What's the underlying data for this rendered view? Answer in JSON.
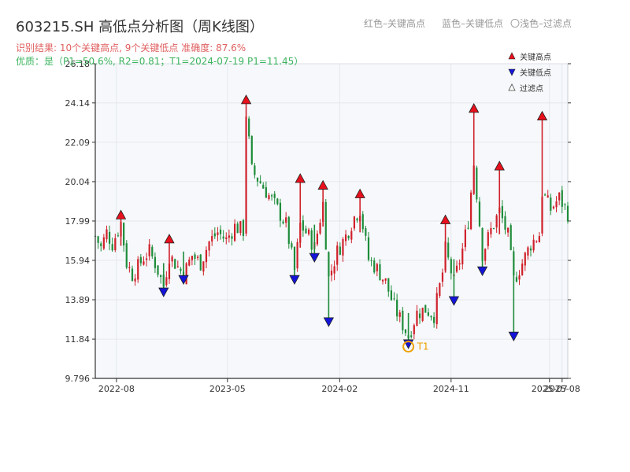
{
  "title": "603215.SH 高低点分析图（周K线图）",
  "subtitle_result": "识别结果: 10个关键高点, 9个关键低点  准确度: 87.6%",
  "subtitle_quality": "优质：是（P1=50.6%, R2=0.81；T1=2024-07-19 P1=11.45）",
  "top_legend": {
    "red": "红色–关键高点",
    "blue": "蓝色–关键低点",
    "light": "〇浅色–过滤点"
  },
  "chart_data": {
    "type": "candlestick",
    "colors": {
      "up": "#d0202a",
      "down": "#1e8c3a",
      "high_marker": "#e8101c",
      "low_marker": "#1414d8",
      "t1": "#f0a000"
    },
    "x_range": [
      "2022-06-10",
      "2025-08-15"
    ],
    "ylim": [
      9.796,
      26.18
    ],
    "y_ticks": [
      "9.796",
      "11.84",
      "13.89",
      "15.94",
      "17.99",
      "20.04",
      "22.09",
      "24.14",
      "26.18"
    ],
    "y_tick_values": [
      9.796,
      11.84,
      13.89,
      15.94,
      17.99,
      20.04,
      22.09,
      24.14,
      26.18
    ],
    "x_ticks": [
      {
        "date": "2022-08-01",
        "label": "2022-08"
      },
      {
        "date": "2023-05-01",
        "label": "2023-05"
      },
      {
        "date": "2024-02-01",
        "label": "2024-02"
      },
      {
        "date": "2024-11-01",
        "label": "2024-11"
      },
      {
        "date": "2025-07-01",
        "label": "2025-07"
      },
      {
        "date": "2025-08-01",
        "label": "2025-08"
      }
    ],
    "legend": [
      {
        "label": "关键高点",
        "marker": "triangle-up-red"
      },
      {
        "label": "关键低点",
        "marker": "triangle-down-blue"
      },
      {
        "label": "过滤点",
        "marker": "triangle-up-light"
      }
    ],
    "key_highs": [
      {
        "date": "2022-08-12",
        "value": 18.3
      },
      {
        "date": "2022-12-09",
        "value": 17.05
      },
      {
        "date": "2023-06-16",
        "value": 24.3
      },
      {
        "date": "2023-10-27",
        "value": 20.2
      },
      {
        "date": "2023-12-22",
        "value": 19.85
      },
      {
        "date": "2024-03-22",
        "value": 19.4
      },
      {
        "date": "2024-10-18",
        "value": 18.05
      },
      {
        "date": "2024-12-27",
        "value": 23.85
      },
      {
        "date": "2025-02-28",
        "value": 20.85
      },
      {
        "date": "2025-06-13",
        "value": 23.45
      }
    ],
    "key_lows": [
      {
        "date": "2022-11-25",
        "value": 14.3
      },
      {
        "date": "2023-01-13",
        "value": 14.95
      },
      {
        "date": "2023-10-13",
        "value": 14.95
      },
      {
        "date": "2023-12-01",
        "value": 16.1
      },
      {
        "date": "2024-01-05",
        "value": 12.75
      },
      {
        "date": "2024-07-19",
        "value": 11.6
      },
      {
        "date": "2024-11-08",
        "value": 13.85
      },
      {
        "date": "2025-01-17",
        "value": 15.4
      },
      {
        "date": "2025-04-04",
        "value": 12.0
      }
    ],
    "filtered_points": [
      {
        "date": "2024-07-19",
        "value": 11.45,
        "label": "T1"
      }
    ],
    "weekly_close": [
      {
        "date": "2022-06-10",
        "close": 17.2
      },
      {
        "date": "2022-06-24",
        "close": 16.6
      },
      {
        "date": "2022-07-08",
        "close": 17.4
      },
      {
        "date": "2022-07-22",
        "close": 16.8
      },
      {
        "date": "2022-08-12",
        "close": 17.9
      },
      {
        "date": "2022-08-26",
        "close": 15.8
      },
      {
        "date": "2022-09-09",
        "close": 15.2
      },
      {
        "date": "2022-09-23",
        "close": 15.6
      },
      {
        "date": "2022-10-07",
        "close": 16.1
      },
      {
        "date": "2022-10-21",
        "close": 16.4
      },
      {
        "date": "2022-11-04",
        "close": 15.8
      },
      {
        "date": "2022-11-25",
        "close": 14.6
      },
      {
        "date": "2022-12-09",
        "close": 16.2
      },
      {
        "date": "2022-12-23",
        "close": 15.8
      },
      {
        "date": "2023-01-13",
        "close": 15.2
      },
      {
        "date": "2023-02-03",
        "close": 16.2
      },
      {
        "date": "2023-02-24",
        "close": 15.8
      },
      {
        "date": "2023-03-17",
        "close": 16.9
      },
      {
        "date": "2023-04-07",
        "close": 17.4
      },
      {
        "date": "2023-04-28",
        "close": 17.0
      },
      {
        "date": "2023-05-19",
        "close": 17.7
      },
      {
        "date": "2023-06-09",
        "close": 17.5
      },
      {
        "date": "2023-06-16",
        "close": 23.6
      },
      {
        "date": "2023-06-30",
        "close": 20.6
      },
      {
        "date": "2023-07-21",
        "close": 20.0
      },
      {
        "date": "2023-08-11",
        "close": 19.3
      },
      {
        "date": "2023-09-01",
        "close": 18.6
      },
      {
        "date": "2023-09-22",
        "close": 17.8
      },
      {
        "date": "2023-10-13",
        "close": 15.4
      },
      {
        "date": "2023-10-27",
        "close": 17.8
      },
      {
        "date": "2023-11-17",
        "close": 17.2
      },
      {
        "date": "2023-12-01",
        "close": 16.6
      },
      {
        "date": "2023-12-22",
        "close": 18.9
      },
      {
        "date": "2024-01-05",
        "close": 15.0
      },
      {
        "date": "2024-01-26",
        "close": 16.4
      },
      {
        "date": "2024-02-16",
        "close": 17.2
      },
      {
        "date": "2024-03-08",
        "close": 18.2
      },
      {
        "date": "2024-03-22",
        "close": 18.6
      },
      {
        "date": "2024-04-12",
        "close": 16.0
      },
      {
        "date": "2024-05-03",
        "close": 15.5
      },
      {
        "date": "2024-05-24",
        "close": 14.8
      },
      {
        "date": "2024-06-14",
        "close": 13.5
      },
      {
        "date": "2024-07-05",
        "close": 12.6
      },
      {
        "date": "2024-07-19",
        "close": 12.0
      },
      {
        "date": "2024-08-09",
        "close": 13.2
      },
      {
        "date": "2024-08-30",
        "close": 13.4
      },
      {
        "date": "2024-09-20",
        "close": 13.1
      },
      {
        "date": "2024-10-11",
        "close": 15.3
      },
      {
        "date": "2024-10-18",
        "close": 16.5
      },
      {
        "date": "2024-11-08",
        "close": 14.8
      },
      {
        "date": "2024-11-29",
        "close": 16.5
      },
      {
        "date": "2024-12-13",
        "close": 18.0
      },
      {
        "date": "2024-12-27",
        "close": 21.0
      },
      {
        "date": "2025-01-17",
        "close": 16.3
      },
      {
        "date": "2025-02-07",
        "close": 17.5
      },
      {
        "date": "2025-02-28",
        "close": 18.5
      },
      {
        "date": "2025-03-21",
        "close": 17.2
      },
      {
        "date": "2025-04-04",
        "close": 14.9
      },
      {
        "date": "2025-04-25",
        "close": 15.8
      },
      {
        "date": "2025-05-16",
        "close": 16.8
      },
      {
        "date": "2025-06-06",
        "close": 17.3
      },
      {
        "date": "2025-06-13",
        "close": 19.5
      },
      {
        "date": "2025-07-04",
        "close": 18.6
      },
      {
        "date": "2025-07-25",
        "close": 19.2
      },
      {
        "date": "2025-08-15",
        "close": 18.4
      }
    ]
  }
}
